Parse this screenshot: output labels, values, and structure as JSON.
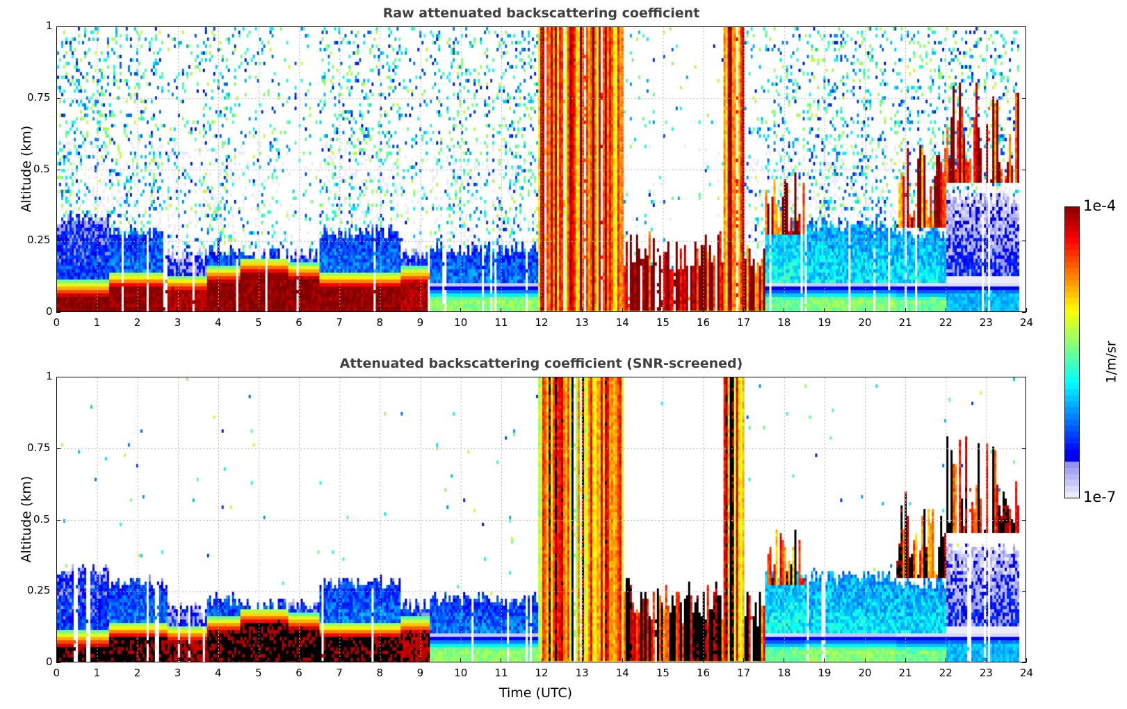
{
  "chart_data": [
    {
      "type": "heatmap",
      "id": "raw",
      "title": "Raw attenuated backscattering coefficient",
      "xlabel": "",
      "ylabel": "Altitude (km)",
      "xlim": [
        0,
        24
      ],
      "ylim": [
        0,
        1
      ],
      "xticks": [
        "0",
        "1",
        "2",
        "3",
        "4",
        "5",
        "6",
        "7",
        "8",
        "9",
        "10",
        "11",
        "12",
        "13",
        "14",
        "15",
        "16",
        "17",
        "18",
        "19",
        "20",
        "21",
        "22",
        "23",
        "24"
      ],
      "yticks": [
        "0",
        "0.25",
        "0.5",
        "0.75",
        "1"
      ],
      "grid": true,
      "screened": false,
      "data_end_hour": 23.8,
      "colorscale": "jet (log10)",
      "clim": [
        1e-07,
        0.0001
      ]
    },
    {
      "type": "heatmap",
      "id": "screened",
      "title": "Attenuated backscattering coefficient (SNR-screened)",
      "xlabel": "Time (UTC)",
      "ylabel": "Altitude (km)",
      "xlim": [
        0,
        24
      ],
      "ylim": [
        0,
        1
      ],
      "xticks": [
        "0",
        "1",
        "2",
        "3",
        "4",
        "5",
        "6",
        "7",
        "8",
        "9",
        "10",
        "11",
        "12",
        "13",
        "14",
        "15",
        "16",
        "17",
        "18",
        "19",
        "20",
        "21",
        "22",
        "23",
        "24"
      ],
      "yticks": [
        "0",
        "0.25",
        "0.5",
        "0.75",
        "1"
      ],
      "grid": true,
      "screened": true,
      "data_end_hour": 23.8,
      "colorscale": "jet (log10), saturated values in black",
      "clim": [
        1e-07,
        0.0001
      ]
    }
  ],
  "profile_segments": [
    {
      "t0": 0.0,
      "t1": 1.25,
      "layer_top_km": 0.05,
      "layer_log": -4.0,
      "aerosol_top_km": 0.33,
      "aerosol_log": -6.2,
      "noise": 0.55,
      "cloud": null
    },
    {
      "t0": 1.25,
      "t1": 2.7,
      "layer_top_km": 0.08,
      "layer_log": -4.0,
      "aerosol_top_km": 0.28,
      "aerosol_log": -6.0,
      "noise": 0.55,
      "cloud": null
    },
    {
      "t0": 2.7,
      "t1": 3.7,
      "layer_top_km": 0.07,
      "layer_log": -4.1,
      "aerosol_top_km": 0.2,
      "aerosol_log": -6.3,
      "noise": 0.4,
      "cloud": null
    },
    {
      "t0": 3.7,
      "t1": 4.5,
      "layer_top_km": 0.1,
      "layer_log": -4.0,
      "aerosol_top_km": 0.22,
      "aerosol_log": -6.0,
      "noise": 0.45,
      "cloud": null
    },
    {
      "t0": 4.5,
      "t1": 5.7,
      "layer_top_km": 0.13,
      "layer_log": -4.0,
      "aerosol_top_km": 0.2,
      "aerosol_log": -6.0,
      "noise": 0.3,
      "cloud": null
    },
    {
      "t0": 5.7,
      "t1": 6.5,
      "layer_top_km": 0.11,
      "layer_log": -4.0,
      "aerosol_top_km": 0.2,
      "aerosol_log": -6.1,
      "noise": 0.1,
      "cloud": null
    },
    {
      "t0": 6.5,
      "t1": 8.5,
      "layer_top_km": 0.08,
      "layer_log": -4.0,
      "aerosol_top_km": 0.28,
      "aerosol_log": -6.0,
      "noise": 0.5,
      "cloud": null
    },
    {
      "t0": 8.5,
      "t1": 9.2,
      "layer_top_km": 0.1,
      "layer_log": -4.1,
      "aerosol_top_km": 0.2,
      "aerosol_log": -6.1,
      "noise": 0.25,
      "cloud": null
    },
    {
      "t0": 9.2,
      "t1": 11.9,
      "layer_top_km": 0.04,
      "layer_log": -5.4,
      "aerosol_top_km": 0.22,
      "aerosol_log": -6.0,
      "noise": 0.5,
      "cloud": null
    },
    {
      "t0": 11.9,
      "t1": 14.0,
      "layer_top_km": 0.02,
      "layer_log": -5.0,
      "aerosol_top_km": 0.0,
      "aerosol_log": -6.0,
      "noise": 0.0,
      "cloud": {
        "base_km": 0.0,
        "top_km": 1.0,
        "log": -4.6
      }
    },
    {
      "t0": 14.0,
      "t1": 15.0,
      "layer_top_km": 0.02,
      "layer_log": -5.0,
      "aerosol_top_km": 0.0,
      "aerosol_log": -6.0,
      "noise": 0.1,
      "cloud": {
        "base_km": 0.0,
        "top_km": 0.3,
        "log": -4.0
      }
    },
    {
      "t0": 15.0,
      "t1": 16.5,
      "layer_top_km": 0.02,
      "layer_log": -5.0,
      "aerosol_top_km": 0.0,
      "aerosol_log": -6.0,
      "noise": 0.05,
      "cloud": {
        "base_km": 0.0,
        "top_km": 0.28,
        "log": -4.1
      }
    },
    {
      "t0": 16.5,
      "t1": 17.0,
      "layer_top_km": 0.02,
      "layer_log": -5.0,
      "aerosol_top_km": 0.0,
      "aerosol_log": -6.0,
      "noise": 0.0,
      "cloud": {
        "base_km": 0.0,
        "top_km": 1.0,
        "log": -4.5
      }
    },
    {
      "t0": 17.0,
      "t1": 17.5,
      "layer_top_km": 0.02,
      "layer_log": -5.0,
      "aerosol_top_km": 0.0,
      "aerosol_log": -6.0,
      "noise": 0.3,
      "cloud": {
        "base_km": 0.0,
        "top_km": 0.25,
        "log": -4.2
      }
    },
    {
      "t0": 17.5,
      "t1": 18.5,
      "layer_top_km": 0.04,
      "layer_log": -5.5,
      "aerosol_top_km": 0.3,
      "aerosol_log": -5.6,
      "noise": 0.5,
      "cloud": {
        "base_km": 0.27,
        "top_km": 0.5,
        "log": -4.3
      }
    },
    {
      "t0": 18.5,
      "t1": 20.8,
      "layer_top_km": 0.04,
      "layer_log": -5.4,
      "aerosol_top_km": 0.3,
      "aerosol_log": -5.7,
      "noise": 0.55,
      "cloud": null
    },
    {
      "t0": 20.8,
      "t1": 22.0,
      "layer_top_km": 0.04,
      "layer_log": -5.5,
      "aerosol_top_km": 0.28,
      "aerosol_log": -5.7,
      "noise": 0.5,
      "cloud": {
        "base_km": 0.3,
        "top_km": 0.6,
        "log": -4.3
      }
    },
    {
      "t0": 22.0,
      "t1": 23.8,
      "layer_top_km": 0.06,
      "layer_log": -6.0,
      "aerosol_top_km": 0.4,
      "aerosol_log": -6.4,
      "noise": 0.55,
      "cloud": {
        "base_km": 0.45,
        "top_km": 0.82,
        "log": -4.1
      }
    }
  ],
  "colorbar": {
    "label": "1/m/sr",
    "max_label": "1e-4",
    "min_label": "1e-7"
  }
}
